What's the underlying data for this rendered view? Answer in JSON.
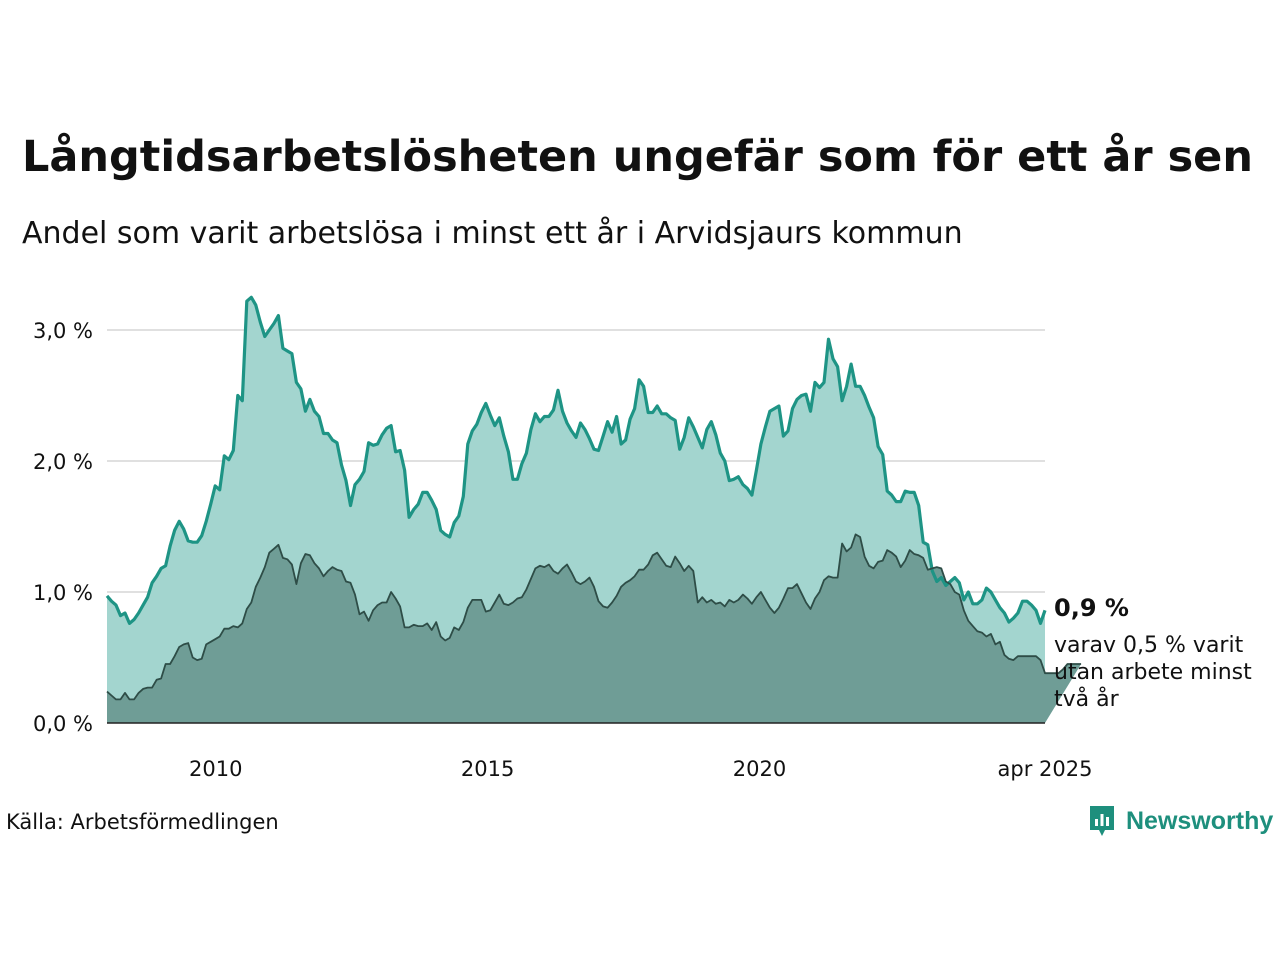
{
  "title": "Långtidsarbetslösheten ungefär som för ett år sen",
  "subtitle": "Andel som varit arbetslösa i minst ett år i Arvidsjaurs kommun",
  "end_label": {
    "value": "0,9 %",
    "note": "varav 0,5 % varit utan arbete minst två år"
  },
  "source": "Källa: Arbetsförmedlingen",
  "brand": {
    "name": "Newsworthy",
    "icon": "newsworthy-logo-icon"
  },
  "colors": {
    "series_1y_line": "#1e9485",
    "series_1y_fill": "#a3d5cf",
    "series_2y_line": "#2e4d47",
    "series_2y_fill": "#6f9d96",
    "grid": "#e0e0e0",
    "brand": "#1e8f7d"
  },
  "chart_data": {
    "type": "area",
    "x_start": "2008-01",
    "x_end": "2025-04",
    "x_frequency": "monthly",
    "ylim": [
      0,
      3.3
    ],
    "yticks": [
      0,
      1,
      2,
      3
    ],
    "ytick_labels": [
      "0,0 %",
      "1,0 %",
      "2,0 %",
      "3,0 %"
    ],
    "xtick_labels": [
      {
        "label": "2010",
        "date": "2010-01"
      },
      {
        "label": "2015",
        "date": "2015-01"
      },
      {
        "label": "2020",
        "date": "2020-01"
      },
      {
        "label": "apr 2025",
        "date": "2025-04"
      }
    ],
    "grid": true,
    "series": [
      {
        "values": [
          0.97,
          0.93,
          0.9,
          0.82,
          0.84,
          0.76,
          0.79,
          0.84,
          0.9,
          0.96,
          1.07,
          1.12,
          1.18,
          1.2,
          1.35,
          1.47,
          1.54,
          1.48,
          1.39,
          1.38,
          1.38,
          1.43,
          1.54,
          1.67,
          1.81,
          1.78,
          2.04,
          2.01,
          2.08,
          2.5,
          2.46,
          3.22,
          3.25,
          3.19,
          3.06,
          2.95,
          3.0,
          3.05,
          3.11,
          2.86,
          2.84,
          2.82,
          2.6,
          2.55,
          2.38,
          2.47,
          2.38,
          2.34,
          2.21,
          2.21,
          2.16,
          2.14,
          1.97,
          1.85,
          1.66,
          1.82,
          1.86,
          1.92,
          2.14,
          2.12,
          2.13,
          2.2,
          2.25,
          2.27,
          2.07,
          2.08,
          1.93,
          1.57,
          1.63,
          1.67,
          1.76,
          1.76,
          1.7,
          1.63,
          1.47,
          1.44,
          1.42,
          1.53,
          1.58,
          1.73,
          2.13,
          2.23,
          2.28,
          2.37,
          2.44,
          2.35,
          2.27,
          2.33,
          2.19,
          2.07,
          1.86,
          1.86,
          1.98,
          2.06,
          2.24,
          2.36,
          2.3,
          2.34,
          2.34,
          2.39,
          2.54,
          2.38,
          2.29,
          2.23,
          2.18,
          2.29,
          2.24,
          2.17,
          2.09,
          2.08,
          2.19,
          2.3,
          2.22,
          2.34,
          2.13,
          2.16,
          2.32,
          2.4,
          2.62,
          2.57,
          2.37,
          2.37,
          2.42,
          2.36,
          2.36,
          2.33,
          2.31,
          2.09,
          2.18,
          2.33,
          2.26,
          2.18,
          2.1,
          2.24,
          2.3,
          2.2,
          2.06,
          2.0,
          1.85,
          1.86,
          1.88,
          1.82,
          1.79,
          1.74,
          1.93,
          2.13,
          2.26,
          2.38,
          2.4,
          2.42,
          2.19,
          2.23,
          2.4,
          2.47,
          2.5,
          2.51,
          2.38,
          2.6,
          2.56,
          2.6,
          2.93,
          2.78,
          2.72,
          2.46,
          2.57,
          2.74,
          2.57,
          2.57,
          2.5,
          2.41,
          2.33,
          2.11,
          2.05,
          1.77,
          1.74,
          1.69,
          1.69,
          1.77,
          1.76,
          1.76,
          1.66,
          1.38,
          1.36,
          1.16,
          1.08,
          1.11,
          1.05,
          1.08,
          1.11,
          1.07,
          0.94,
          1.0,
          0.91,
          0.91,
          0.94,
          1.03,
          1.0,
          0.94,
          0.88,
          0.84,
          0.77,
          0.8,
          0.84,
          0.93,
          0.93,
          0.9,
          0.86,
          0.76,
          0.86
        ]
      },
      {
        "values": [
          0.24,
          0.21,
          0.18,
          0.18,
          0.23,
          0.18,
          0.18,
          0.23,
          0.26,
          0.27,
          0.27,
          0.33,
          0.34,
          0.45,
          0.45,
          0.51,
          0.58,
          0.6,
          0.61,
          0.5,
          0.48,
          0.49,
          0.6,
          0.62,
          0.64,
          0.66,
          0.72,
          0.72,
          0.74,
          0.73,
          0.76,
          0.87,
          0.92,
          1.04,
          1.11,
          1.19,
          1.3,
          1.33,
          1.36,
          1.26,
          1.25,
          1.21,
          1.06,
          1.22,
          1.29,
          1.28,
          1.22,
          1.18,
          1.12,
          1.16,
          1.19,
          1.17,
          1.16,
          1.08,
          1.07,
          0.98,
          0.83,
          0.85,
          0.78,
          0.86,
          0.9,
          0.92,
          0.92,
          1.0,
          0.95,
          0.89,
          0.73,
          0.73,
          0.75,
          0.74,
          0.74,
          0.76,
          0.71,
          0.77,
          0.66,
          0.63,
          0.65,
          0.73,
          0.71,
          0.77,
          0.88,
          0.94,
          0.94,
          0.94,
          0.85,
          0.86,
          0.92,
          0.98,
          0.91,
          0.9,
          0.92,
          0.95,
          0.96,
          1.02,
          1.1,
          1.18,
          1.2,
          1.19,
          1.21,
          1.16,
          1.14,
          1.18,
          1.21,
          1.15,
          1.08,
          1.06,
          1.08,
          1.11,
          1.04,
          0.93,
          0.89,
          0.88,
          0.92,
          0.97,
          1.04,
          1.07,
          1.09,
          1.12,
          1.17,
          1.17,
          1.21,
          1.28,
          1.3,
          1.25,
          1.2,
          1.19,
          1.27,
          1.22,
          1.16,
          1.2,
          1.16,
          0.92,
          0.96,
          0.92,
          0.94,
          0.91,
          0.92,
          0.89,
          0.94,
          0.92,
          0.94,
          0.98,
          0.95,
          0.91,
          0.96,
          1.0,
          0.94,
          0.88,
          0.84,
          0.88,
          0.95,
          1.03,
          1.03,
          1.06,
          0.99,
          0.92,
          0.87,
          0.95,
          1.0,
          1.09,
          1.12,
          1.11,
          1.11,
          1.37,
          1.31,
          1.34,
          1.44,
          1.42,
          1.27,
          1.2,
          1.18,
          1.23,
          1.24,
          1.32,
          1.3,
          1.27,
          1.19,
          1.24,
          1.32,
          1.29,
          1.28,
          1.26,
          1.17,
          1.18,
          1.19,
          1.18,
          1.08,
          1.06,
          1.0,
          0.98,
          0.86,
          0.78,
          0.74,
          0.7,
          0.69,
          0.66,
          0.68,
          0.6,
          0.62,
          0.52,
          0.49,
          0.48,
          0.51,
          0.51,
          0.51,
          0.51,
          0.51,
          0.48,
          0.38,
          0.38,
          0.38,
          0.38,
          0.41,
          0.45,
          0.45,
          0.45,
          0.45
        ]
      }
    ]
  }
}
